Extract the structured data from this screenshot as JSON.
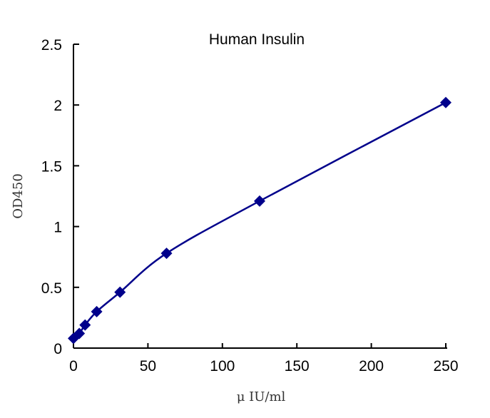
{
  "chart_data": {
    "type": "line",
    "title": "Human Insulin",
    "xlabel": "μ IU/ml",
    "ylabel": "OD450",
    "xlim": [
      0,
      250
    ],
    "ylim": [
      0,
      2.5
    ],
    "x_ticks": [
      "0",
      "50",
      "100",
      "150",
      "200",
      "250"
    ],
    "y_ticks": [
      "0",
      "0.5",
      "1",
      "1.5",
      "2",
      "2.5"
    ],
    "grid": false,
    "legend": "none",
    "marker": "diamond",
    "color": "#00008B",
    "series": [
      {
        "x": [
          0,
          3.9,
          7.8,
          15.6,
          31.25,
          62.5,
          125,
          250
        ],
        "y": [
          0.08,
          0.12,
          0.19,
          0.3,
          0.46,
          0.78,
          1.21,
          2.02
        ]
      }
    ]
  }
}
